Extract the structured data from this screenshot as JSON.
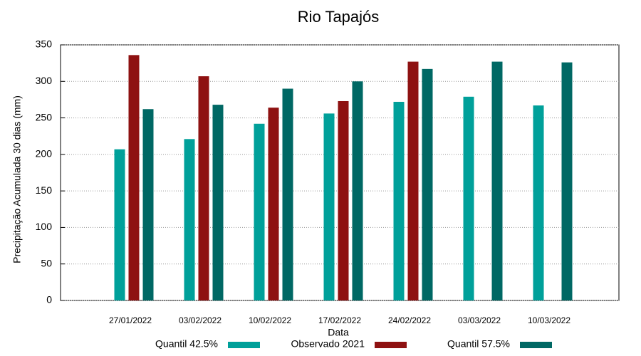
{
  "chart_data": {
    "type": "bar",
    "title": "Rio Tapajós",
    "x_label": "Data",
    "y_label": "Precipitação Acumulada 30 dias (mm)",
    "categories": [
      "27/01/2022",
      "03/02/2022",
      "10/02/2022",
      "17/02/2022",
      "24/02/2022",
      "03/03/2022",
      "10/03/2022"
    ],
    "series": [
      {
        "name": "Quantil 42.5%",
        "color": "#00a09a",
        "values": [
          207,
          221,
          242,
          256,
          272,
          279,
          267
        ]
      },
      {
        "name": "Observado 2021",
        "color": "#8e1111",
        "values": [
          336,
          307,
          264,
          273,
          327,
          null,
          null
        ]
      },
      {
        "name": "Quantil 57.5%",
        "color": "#006864",
        "values": [
          262,
          268,
          290,
          300,
          317,
          327,
          326
        ]
      }
    ],
    "ylim": [
      0,
      350
    ],
    "yticks": [
      0,
      50,
      100,
      150,
      200,
      250,
      300,
      350
    ],
    "grid": true,
    "legend": "bottom"
  }
}
